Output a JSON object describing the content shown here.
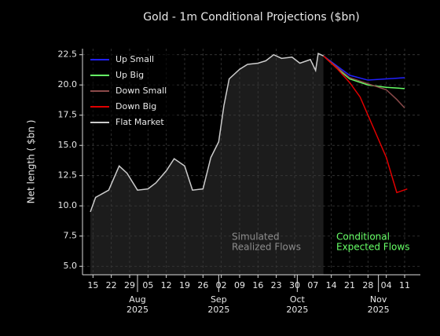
{
  "chart_data": {
    "type": "line",
    "title": "Gold - 1m Conditional Projections ($bn)",
    "ylabel": "Net length ( $bn )",
    "ylim": [
      4.3,
      23.0
    ],
    "yticks": [
      {
        "value": 5,
        "label": "5.0"
      },
      7.5,
      {
        "value": 10,
        "label": "10.0"
      },
      12.5,
      {
        "value": 15,
        "label": "15.0"
      },
      17.5,
      {
        "value": 20,
        "label": "20.0"
      },
      22.5
    ],
    "xlim": [
      "2025-07-11",
      "2025-11-17"
    ],
    "xticks": [
      {
        "value": "2025-07-15",
        "label": "15"
      },
      {
        "value": "2025-07-22",
        "label": "22"
      },
      {
        "value": "2025-07-29",
        "label": "29"
      },
      {
        "value": "2025-08-05",
        "label": "05"
      },
      {
        "value": "2025-08-12",
        "label": "12"
      },
      {
        "value": "2025-08-19",
        "label": "19"
      },
      {
        "value": "2025-08-26",
        "label": "26"
      },
      {
        "value": "2025-09-02",
        "label": "02"
      },
      {
        "value": "2025-09-09",
        "label": "09"
      },
      {
        "value": "2025-09-16",
        "label": "16"
      },
      {
        "value": "2025-09-23",
        "label": "23"
      },
      {
        "value": "2025-09-30",
        "label": "30"
      },
      {
        "value": "2025-10-07",
        "label": "07"
      },
      {
        "value": "2025-10-14",
        "label": "14"
      },
      {
        "value": "2025-10-21",
        "label": "21"
      },
      {
        "value": "2025-10-28",
        "label": "28"
      },
      {
        "value": "2025-11-04",
        "label": "04"
      },
      {
        "value": "2025-11-11",
        "label": "11"
      }
    ],
    "month_ticks": [
      {
        "value": "2025-08-01",
        "label": "Aug",
        "year": "2025"
      },
      {
        "value": "2025-09-01",
        "label": "Sep",
        "year": "2025"
      },
      {
        "value": "2025-10-01",
        "label": "Oct",
        "year": "2025"
      },
      {
        "value": "2025-11-01",
        "label": "Nov",
        "year": "2025"
      }
    ],
    "grid": true,
    "legend": "upper left",
    "shade_series": 4,
    "annotations": [
      {
        "lines": [
          "Simulated",
          "Realized Flows"
        ],
        "color": "#8c8c8c"
      },
      {
        "lines": [
          "Conditional",
          "Expected Flows"
        ],
        "color": "#66ff66"
      }
    ],
    "series": [
      {
        "name": "Up Small",
        "color": "#2020ff",
        "x": [
          "2025-10-11",
          "2025-10-16",
          "2025-10-21",
          "2025-10-28",
          "2025-11-04",
          "2025-11-11"
        ],
        "values": [
          22.4,
          21.6,
          20.8,
          20.4,
          20.5,
          20.6
        ]
      },
      {
        "name": "Up Big",
        "color": "#66ff66",
        "x": [
          "2025-10-11",
          "2025-10-16",
          "2025-10-21",
          "2025-10-28",
          "2025-11-04",
          "2025-11-11"
        ],
        "values": [
          22.4,
          21.4,
          20.5,
          20.0,
          19.8,
          19.7
        ]
      },
      {
        "name": "Down Small",
        "color": "#8b4a4a",
        "x": [
          "2025-10-11",
          "2025-10-16",
          "2025-10-21",
          "2025-10-28",
          "2025-11-04",
          "2025-11-08",
          "2025-11-11"
        ],
        "values": [
          22.4,
          21.5,
          20.6,
          20.1,
          19.6,
          18.8,
          18.1
        ]
      },
      {
        "name": "Down Big",
        "color": "#e00000",
        "x": [
          "2025-10-11",
          "2025-10-16",
          "2025-10-21",
          "2025-10-25",
          "2025-10-28",
          "2025-11-01",
          "2025-11-04",
          "2025-11-08",
          "2025-11-12"
        ],
        "values": [
          22.4,
          21.4,
          20.2,
          19.0,
          17.5,
          15.5,
          14.0,
          11.1,
          11.4
        ]
      },
      {
        "name": "Flat Market",
        "color": "#cccccc",
        "x": [
          "2025-07-14",
          "2025-07-16",
          "2025-07-21",
          "2025-07-25",
          "2025-07-28",
          "2025-08-01",
          "2025-08-05",
          "2025-08-08",
          "2025-08-12",
          "2025-08-15",
          "2025-08-19",
          "2025-08-22",
          "2025-08-26",
          "2025-08-29",
          "2025-09-01",
          "2025-09-03",
          "2025-09-05",
          "2025-09-09",
          "2025-09-12",
          "2025-09-16",
          "2025-09-19",
          "2025-09-22",
          "2025-09-25",
          "2025-09-29",
          "2025-10-02",
          "2025-10-06",
          "2025-10-08",
          "2025-10-09",
          "2025-10-11"
        ],
        "values": [
          9.5,
          10.7,
          11.3,
          13.3,
          12.7,
          11.3,
          11.4,
          11.9,
          12.9,
          13.9,
          13.3,
          11.3,
          11.4,
          14.0,
          15.3,
          18.3,
          20.5,
          21.3,
          21.7,
          21.8,
          22.0,
          22.5,
          22.2,
          22.3,
          21.8,
          22.1,
          21.2,
          22.6,
          22.4
        ]
      }
    ]
  }
}
